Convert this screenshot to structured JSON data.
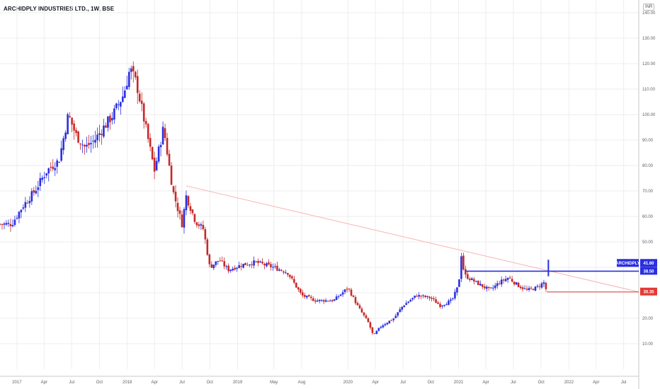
{
  "chart_data": {
    "type": "candlestick",
    "title": "ARCHIDPLY INDUSTRIES LTD., 1W, BSE",
    "currency": "INR",
    "ylim": [
      0,
      145
    ],
    "y_ticks": [
      "140.00",
      "130.00",
      "120.00",
      "110.00",
      "100.00",
      "90.00",
      "80.00",
      "70.00",
      "60.00",
      "50.00",
      "40.00",
      "30.00",
      "20.00",
      "10.00"
    ],
    "y_tick_values": [
      140,
      130,
      120,
      110,
      100,
      90,
      80,
      70,
      60,
      50,
      40,
      30,
      20,
      10
    ],
    "x_range": [
      "2016-11-06",
      "2022-08-20"
    ],
    "x_ticks": [
      {
        "label": "2017",
        "date": "2017-01-01"
      },
      {
        "label": "Apr",
        "date": "2017-04-01"
      },
      {
        "label": "Jul",
        "date": "2017-07-01"
      },
      {
        "label": "Oct",
        "date": "2017-10-01"
      },
      {
        "label": "2018",
        "date": "2018-01-01"
      },
      {
        "label": "Apr",
        "date": "2018-04-01"
      },
      {
        "label": "Jul",
        "date": "2018-07-01"
      },
      {
        "label": "Oct",
        "date": "2018-10-01"
      },
      {
        "label": "2019",
        "date": "2019-01-01"
      },
      {
        "label": "May",
        "date": "2019-05-01"
      },
      {
        "label": "Aug",
        "date": "2019-08-01"
      },
      {
        "label": "2020",
        "date": "2020-01-01"
      },
      {
        "label": "Apr",
        "date": "2020-04-01"
      },
      {
        "label": "Jul",
        "date": "2020-07-01"
      },
      {
        "label": "Oct",
        "date": "2020-10-01"
      },
      {
        "label": "2021",
        "date": "2021-01-01"
      },
      {
        "label": "Apr",
        "date": "2021-04-01"
      },
      {
        "label": "Jul",
        "date": "2021-07-01"
      },
      {
        "label": "Oct",
        "date": "2021-10-01"
      },
      {
        "label": "2022",
        "date": "2022-01-01"
      },
      {
        "label": "Apr",
        "date": "2022-04-01"
      },
      {
        "label": "Jul",
        "date": "2022-07-01"
      }
    ],
    "price_path": [
      [
        "2016-11-06",
        57
      ],
      [
        "2016-12-15",
        57
      ],
      [
        "2017-01-20",
        64
      ],
      [
        "2017-03-01",
        70
      ],
      [
        "2017-04-10",
        78
      ],
      [
        "2017-05-20",
        82
      ],
      [
        "2017-06-20",
        100
      ],
      [
        "2017-07-15",
        92
      ],
      [
        "2017-08-15",
        87
      ],
      [
        "2017-09-15",
        90
      ],
      [
        "2017-10-15",
        95
      ],
      [
        "2017-11-15",
        100
      ],
      [
        "2017-12-20",
        108
      ],
      [
        "2018-01-10",
        118
      ],
      [
        "2018-02-01",
        112
      ],
      [
        "2018-03-01",
        96
      ],
      [
        "2018-04-01",
        78
      ],
      [
        "2018-05-01",
        95
      ],
      [
        "2018-06-01",
        70
      ],
      [
        "2018-07-01",
        57
      ],
      [
        "2018-07-15",
        68
      ],
      [
        "2018-08-15",
        58
      ],
      [
        "2018-09-10",
        55
      ],
      [
        "2018-10-01",
        40
      ],
      [
        "2018-11-01",
        43
      ],
      [
        "2018-12-01",
        39
      ],
      [
        "2019-01-15",
        41
      ],
      [
        "2019-03-01",
        42
      ],
      [
        "2019-05-01",
        40
      ],
      [
        "2019-06-15",
        38
      ],
      [
        "2019-08-01",
        29
      ],
      [
        "2019-09-15",
        27
      ],
      [
        "2019-11-15",
        27
      ],
      [
        "2020-01-01",
        32
      ],
      [
        "2020-02-01",
        25
      ],
      [
        "2020-03-10",
        18
      ],
      [
        "2020-03-25",
        13
      ],
      [
        "2020-04-20",
        17
      ],
      [
        "2020-06-01",
        20
      ],
      [
        "2020-07-01",
        25
      ],
      [
        "2020-08-15",
        29
      ],
      [
        "2020-10-01",
        28
      ],
      [
        "2020-11-01",
        25
      ],
      [
        "2020-12-10",
        27
      ],
      [
        "2021-01-01",
        33
      ],
      [
        "2021-01-10",
        45
      ],
      [
        "2021-01-20",
        37
      ],
      [
        "2021-02-15",
        35
      ],
      [
        "2021-03-15",
        33
      ],
      [
        "2021-04-15",
        31
      ],
      [
        "2021-05-15",
        34
      ],
      [
        "2021-06-15",
        36
      ],
      [
        "2021-07-15",
        33
      ],
      [
        "2021-08-15",
        31
      ],
      [
        "2021-09-15",
        32
      ],
      [
        "2021-10-10",
        34
      ],
      [
        "2021-10-20",
        30.35
      ]
    ],
    "annotations": [
      {
        "type": "trendline",
        "color": "#f8b3b0",
        "from": [
          "2018-07-15",
          72
        ],
        "to": [
          "2022-08-20",
          30.35
        ]
      },
      {
        "type": "hline",
        "color": "#2a2ee0",
        "from": [
          "2021-01-25",
          38.5
        ],
        "to": [
          "2022-08-20",
          38.5
        ]
      },
      {
        "type": "hline",
        "color": "#e53935",
        "from": [
          "2021-10-20",
          30.35
        ],
        "to": [
          "2022-08-20",
          30.35
        ]
      },
      {
        "type": "vline",
        "color": "#2a2ee0",
        "at": "2021-10-25",
        "from": 36.5,
        "to": 43
      }
    ],
    "price_labels": [
      {
        "symbol": "ARCHIDPLY",
        "value": "41.60",
        "color": "#2a2ee0"
      },
      {
        "value": "38.50",
        "color": "#2a2ee0"
      },
      {
        "value": "30.35",
        "color": "#e53935"
      }
    ],
    "colors": {
      "up": "#2a2ee0",
      "down": "#c62828",
      "grid": "#eeeeee",
      "axis": "#5d606b"
    }
  }
}
